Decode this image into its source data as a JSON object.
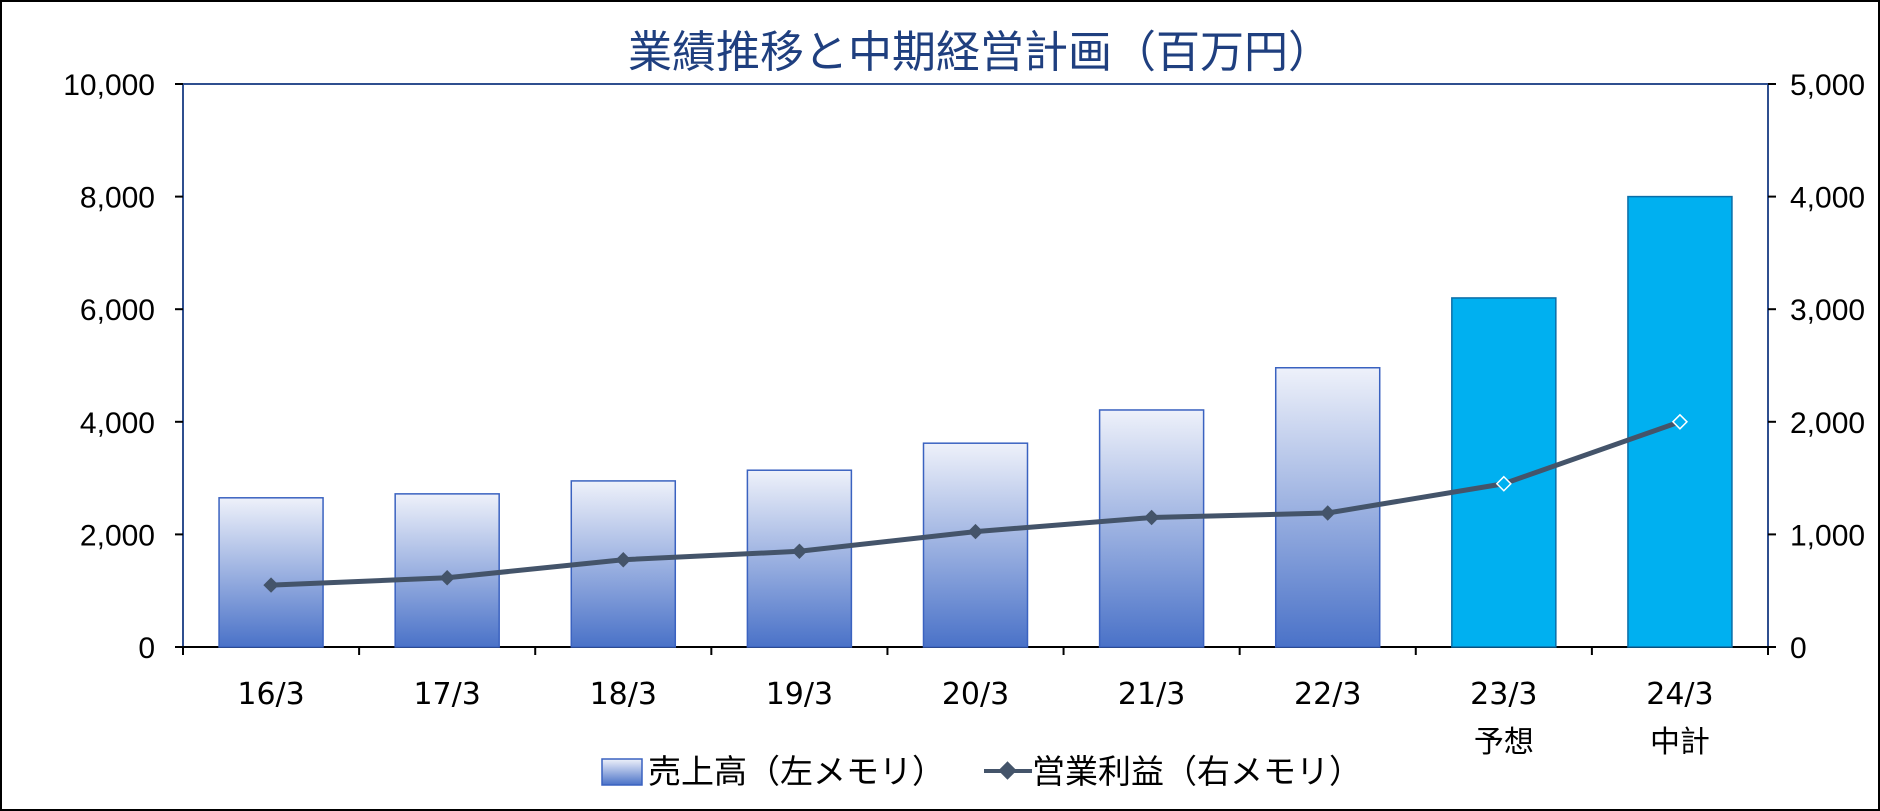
{
  "chart_data": {
    "type": "bar",
    "title": "業績推移と中期経営計画（百万円）",
    "categories": [
      "16/3",
      "17/3",
      "18/3",
      "19/3",
      "20/3",
      "21/3",
      "22/3",
      "23/3",
      "24/3"
    ],
    "category_sublabels": [
      "",
      "",
      "",
      "",
      "",
      "",
      "",
      "予想",
      "中計"
    ],
    "y_left": {
      "lim": [
        0,
        10000
      ],
      "ticks": [
        0,
        2000,
        4000,
        6000,
        8000,
        10000
      ],
      "tick_labels": [
        "0",
        "2,000",
        "4,000",
        "6,000",
        "8,000",
        "10,000"
      ]
    },
    "y_right": {
      "lim": [
        0,
        5000
      ],
      "ticks": [
        0,
        1000,
        2000,
        3000,
        4000,
        5000
      ],
      "tick_labels": [
        "0",
        "1,000",
        "2,000",
        "3,000",
        "4,000",
        "5,000"
      ]
    },
    "series": [
      {
        "name": "売上高（左メモリ）",
        "kind": "bar",
        "axis": "left",
        "values": [
          2650,
          2720,
          2950,
          3140,
          3620,
          4210,
          4960,
          6200,
          8000
        ],
        "highlighted_from_index": 7
      },
      {
        "name": "営業利益（右メモリ）",
        "kind": "line",
        "axis": "right",
        "values": [
          550,
          615,
          775,
          850,
          1025,
          1150,
          1190,
          1450,
          2000
        ],
        "hollow_markers_from_index": 7
      }
    ],
    "legend_position": "bottom",
    "grid": false,
    "colors": {
      "title": "#1f3f7f",
      "bar_gradient_top": "#eef1fa",
      "bar_gradient_bottom": "#4a72c8",
      "bar_border": "#3a62c0",
      "bar_highlight": "#00b0f0",
      "bar_highlight_border": "#0a6ea8",
      "line": "#44546a",
      "axis": "#000000",
      "plot_border": "#2f4f8f"
    }
  }
}
